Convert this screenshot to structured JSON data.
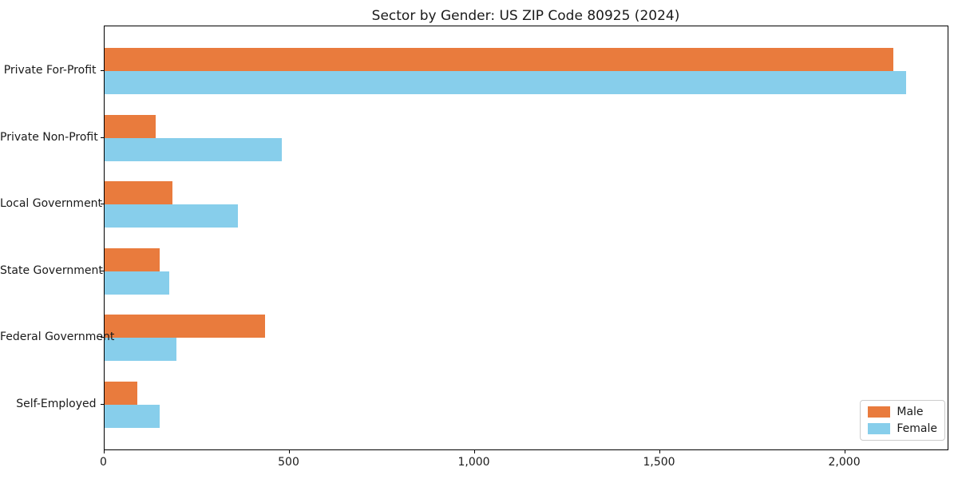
{
  "chart_data": {
    "type": "bar",
    "orientation": "horizontal",
    "title": "Sector by Gender: US ZIP Code 80925 (2024)",
    "categories": [
      "Private For-Profit",
      "Private Non-Profit",
      "Local Government",
      "State Government",
      "Federal Government",
      "Self-Employed"
    ],
    "series": [
      {
        "name": "Male",
        "color": "#E97B3D",
        "values": [
          2130,
          140,
          185,
          150,
          435,
          90
        ]
      },
      {
        "name": "Female",
        "color": "#87CEEB",
        "values": [
          2165,
          480,
          360,
          175,
          195,
          150
        ]
      }
    ],
    "xlabel": "",
    "ylabel": "",
    "xlim": [
      0,
      2280
    ],
    "x_ticks": [
      0,
      500,
      1000,
      1500,
      2000
    ],
    "x_tick_labels": [
      "0",
      "500",
      "1,000",
      "1,500",
      "2,000"
    ],
    "legend_position": "lower right",
    "grid": false,
    "background": "#ffffff",
    "spine_color": "#000000"
  }
}
